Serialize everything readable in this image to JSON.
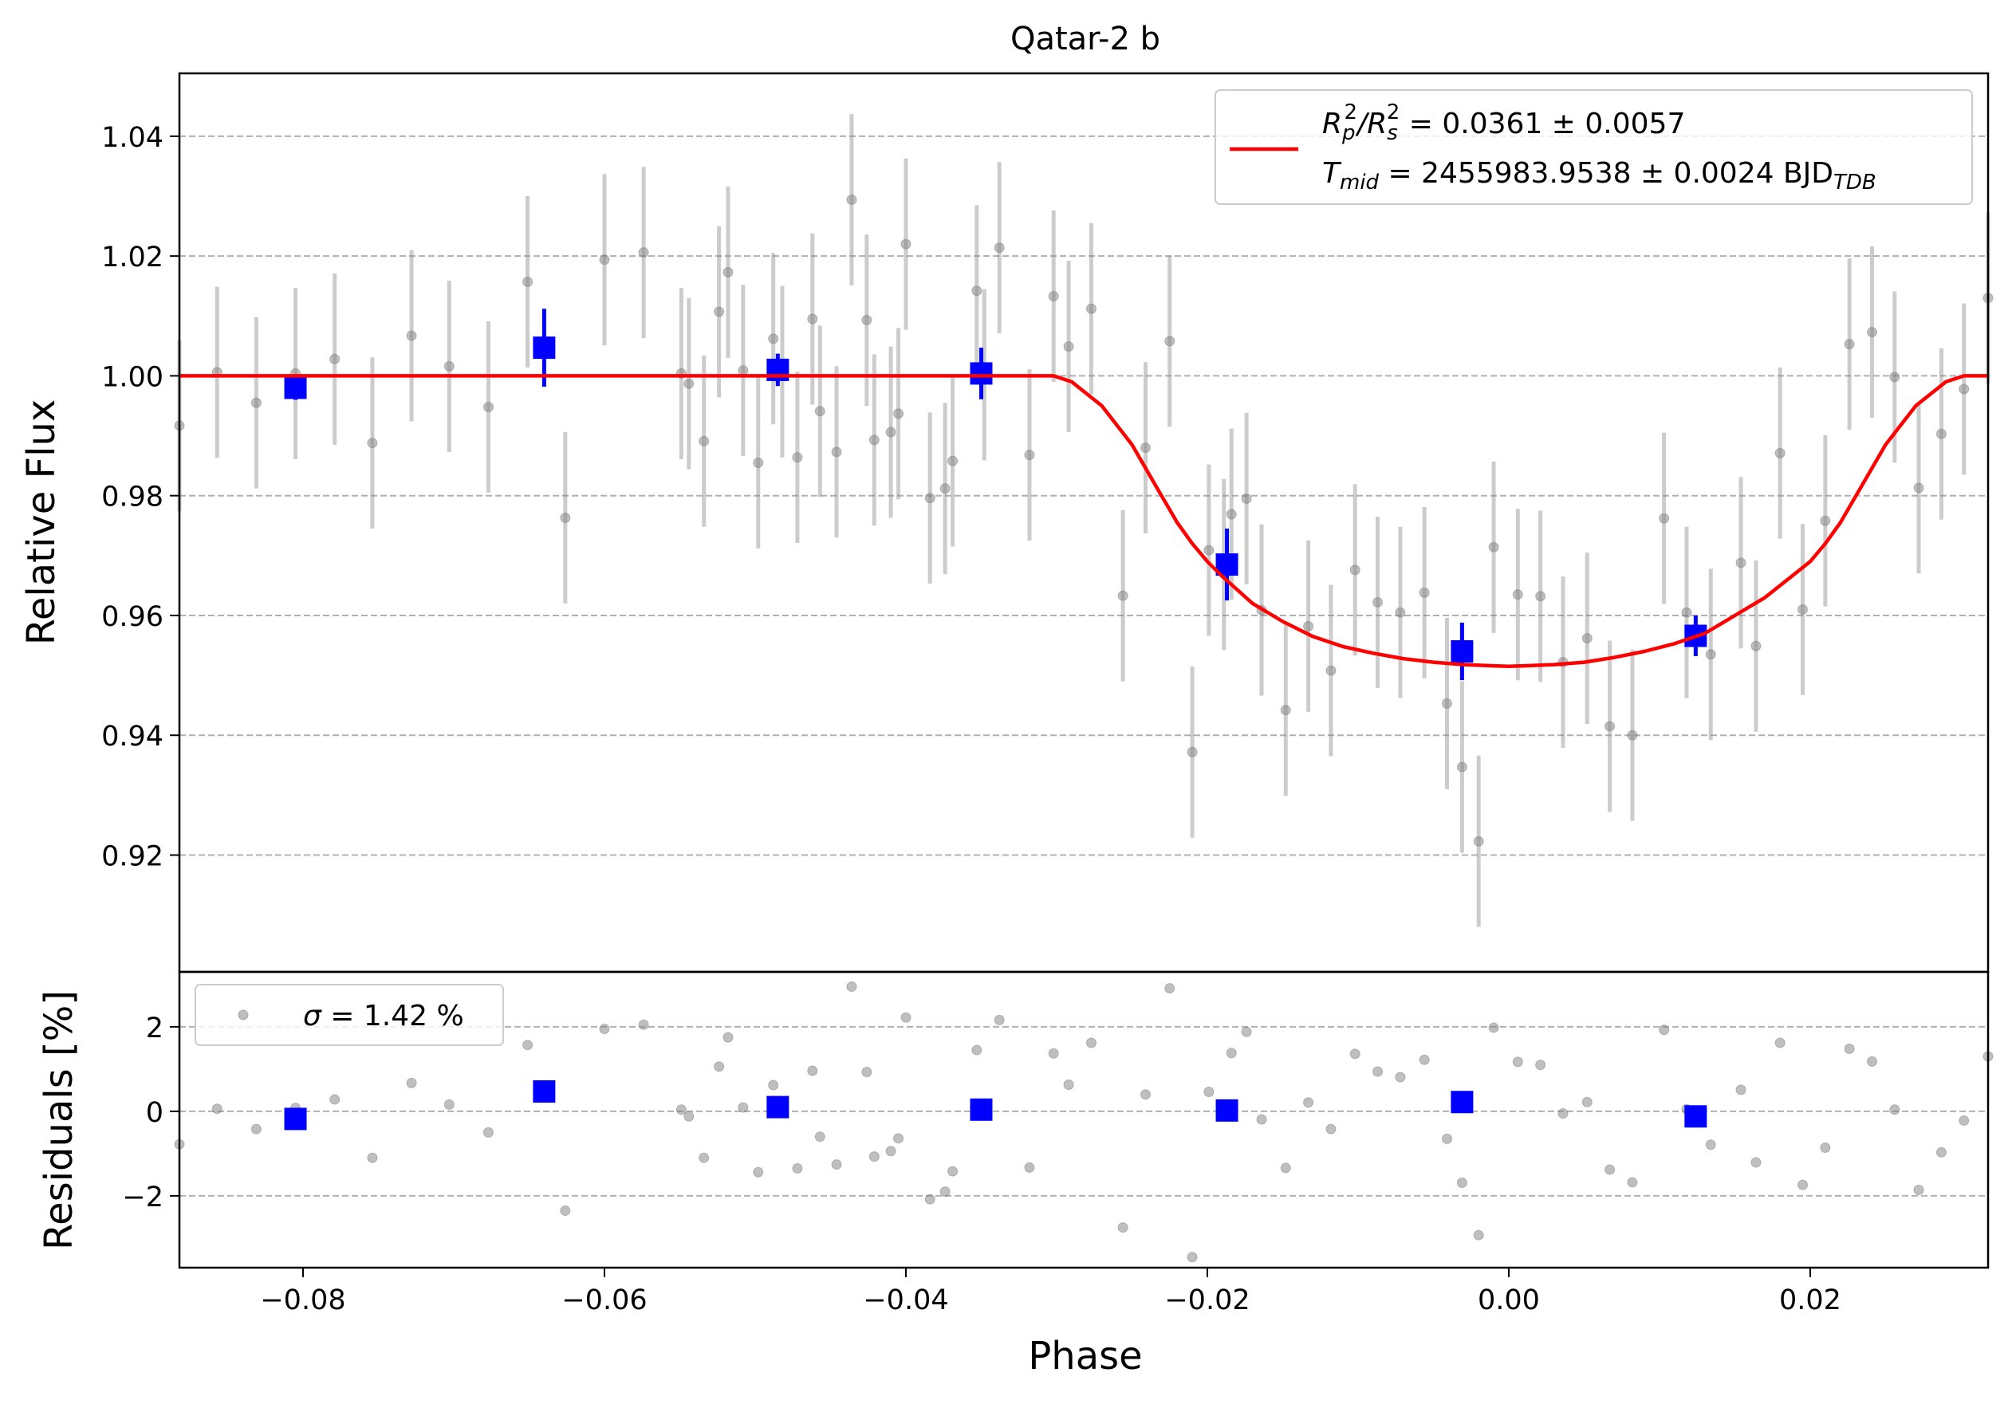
{
  "chart_data": [
    {
      "type": "scatter",
      "panel": "main",
      "title": "Qatar-2 b",
      "xlabel": "",
      "ylabel": "Relative Flux",
      "xlim": [
        -0.0882,
        0.0318
      ],
      "ylim": [
        0.9005,
        1.0505
      ],
      "grid": "horizontal dashed",
      "yticks": [
        0.92,
        0.94,
        0.96,
        0.98,
        1.0,
        1.02,
        1.04
      ],
      "ytick_labels": [
        "0.92",
        "0.94",
        "0.96",
        "0.98",
        "1.00",
        "1.02",
        "1.04"
      ],
      "legend": {
        "placement": "top-right",
        "line1": [
          "R",
          "p",
          "2",
          "/R",
          "s",
          "2",
          " = 0.0361 ± 0.0057"
        ],
        "line2": [
          "T",
          "mid",
          " = 2455983.9538 ± 0.0024 BJD",
          "TDB"
        ]
      },
      "series": [
        {
          "kind": "raw",
          "color": "#808080",
          "x": [
            -0.0882,
            -0.0857,
            -0.0831,
            -0.0805,
            -0.0779,
            -0.0754,
            -0.0728,
            -0.0703,
            -0.0677,
            -0.0651,
            -0.0626,
            -0.06,
            -0.0574,
            -0.0549,
            -0.0544,
            -0.0534,
            -0.0524,
            -0.0518,
            -0.0508,
            -0.0498,
            -0.0488,
            -0.0482,
            -0.0472,
            -0.0462,
            -0.0457,
            -0.0446,
            -0.0436,
            -0.0426,
            -0.0421,
            -0.041,
            -0.0405,
            -0.04,
            -0.0384,
            -0.0374,
            -0.0369,
            -0.0353,
            -0.0348,
            -0.0338,
            -0.0318,
            -0.0302,
            -0.0292,
            -0.0277,
            -0.0256,
            -0.0241,
            -0.0225,
            -0.021,
            -0.0199,
            -0.0189,
            -0.0184,
            -0.0174,
            -0.0164,
            -0.0148,
            -0.0133,
            -0.0118,
            -0.0102,
            -0.0087,
            -0.0072,
            -0.0056,
            -0.0041,
            -0.0031,
            -0.002,
            -0.001,
            0.0006,
            0.0021,
            0.0036,
            0.0052,
            0.0067,
            0.0082,
            0.0103,
            0.0118,
            0.0134,
            0.0154,
            0.0164,
            0.018,
            0.0195,
            0.021,
            0.0226,
            0.0241,
            0.0256,
            0.0272,
            0.0287,
            0.0302,
            0.0318
          ],
          "y": [
            0.9917,
            1.0006,
            0.9955,
            1.0004,
            1.0028,
            0.9888,
            1.0067,
            1.0016,
            0.9948,
            1.0157,
            0.9763,
            1.0194,
            1.0206,
            1.0004,
            0.9987,
            0.9891,
            1.0107,
            1.0173,
            1.0009,
            0.9855,
            1.0062,
            1.0007,
            0.9864,
            1.0095,
            0.9941,
            0.9873,
            1.0294,
            1.0093,
            0.9893,
            0.9906,
            0.9937,
            1.022,
            0.9796,
            0.9812,
            0.9858,
            1.0142,
            1.0002,
            1.0214,
            0.9868,
            1.0133,
            1.0049,
            1.0112,
            0.9633,
            0.988,
            1.0058,
            0.9372,
            0.9709,
            0.9685,
            0.9769,
            0.9795,
            0.9609,
            0.9442,
            0.9582,
            0.9508,
            0.9676,
            0.9622,
            0.9605,
            0.9638,
            0.9453,
            0.9347,
            0.9223,
            0.9714,
            0.9635,
            0.9632,
            0.9522,
            0.9562,
            0.9415,
            0.94,
            0.9762,
            0.9605,
            0.9535,
            0.9688,
            0.9549,
            0.9871,
            0.961,
            0.9758,
            1.0053,
            1.0073,
            0.9998,
            0.9813,
            0.9903,
            0.9978,
            1.013
          ],
          "error": 0.0143
        },
        {
          "kind": "binned",
          "color": "#0000ff",
          "x": [
            -0.0805,
            -0.064,
            -0.0485,
            -0.035,
            -0.0187,
            -0.0031,
            0.0124
          ],
          "y": [
            0.998,
            1.0047,
            1.001,
            1.0004,
            0.9685,
            0.954,
            0.9566
          ],
          "error": [
            0.002,
            0.0065,
            0.0027,
            0.0043,
            0.006,
            0.0048,
            0.0034
          ]
        },
        {
          "kind": "model",
          "color": "#ff0000",
          "x": [
            -0.0882,
            -0.0302,
            -0.029,
            -0.027,
            -0.025,
            -0.0235,
            -0.022,
            -0.021,
            -0.02,
            -0.019,
            -0.017,
            -0.015,
            -0.013,
            -0.011,
            -0.009,
            -0.007,
            -0.005,
            -0.003,
            -0.001,
            0.0,
            0.001,
            0.003,
            0.005,
            0.007,
            0.009,
            0.011,
            0.013,
            0.015,
            0.017,
            0.019,
            0.02,
            0.021,
            0.022,
            0.0235,
            0.025,
            0.027,
            0.029,
            0.0302,
            0.0318
          ],
          "y": [
            1.0,
            1.0,
            0.999,
            0.995,
            0.9885,
            0.982,
            0.9755,
            0.972,
            0.969,
            0.9665,
            0.962,
            0.959,
            0.9565,
            0.9548,
            0.9537,
            0.9528,
            0.9522,
            0.9518,
            0.9516,
            0.9515,
            0.9516,
            0.9518,
            0.9522,
            0.953,
            0.954,
            0.9553,
            0.957,
            0.96,
            0.963,
            0.967,
            0.969,
            0.972,
            0.9755,
            0.982,
            0.9885,
            0.995,
            0.999,
            1.0,
            1.0
          ]
        }
      ]
    },
    {
      "type": "scatter",
      "panel": "residuals",
      "xlabel": "Phase",
      "ylabel": "Residuals [%]",
      "xlim": [
        -0.0882,
        0.0318
      ],
      "ylim": [
        -3.7,
        3.3
      ],
      "grid": "horizontal dashed",
      "yticks": [
        -2,
        0,
        2
      ],
      "ytick_labels": [
        "−2",
        "0",
        "2"
      ],
      "xticks": [
        -0.08,
        -0.06,
        -0.04,
        -0.02,
        0.0,
        0.02
      ],
      "xtick_labels": [
        "−0.08",
        "−0.06",
        "−0.04",
        "−0.02",
        "0.00",
        "0.02"
      ],
      "legend": {
        "placement": "top-left",
        "label": [
          "σ",
          " = 1.42 %"
        ]
      },
      "series": [
        {
          "kind": "raw",
          "color": "#808080",
          "x": [
            -0.0882,
            -0.0857,
            -0.0831,
            -0.0805,
            -0.0779,
            -0.0754,
            -0.0728,
            -0.0703,
            -0.0677,
            -0.0651,
            -0.0626,
            -0.06,
            -0.0574,
            -0.0549,
            -0.0544,
            -0.0534,
            -0.0524,
            -0.0518,
            -0.0508,
            -0.0498,
            -0.0488,
            -0.0482,
            -0.0472,
            -0.0462,
            -0.0457,
            -0.0446,
            -0.0436,
            -0.0426,
            -0.0421,
            -0.041,
            -0.0405,
            -0.04,
            -0.0384,
            -0.0374,
            -0.0369,
            -0.0353,
            -0.0348,
            -0.0338,
            -0.0318,
            -0.0302,
            -0.0292,
            -0.0277,
            -0.0256,
            -0.0241,
            -0.0225,
            -0.021,
            -0.0199,
            -0.0189,
            -0.0184,
            -0.0174,
            -0.0164,
            -0.0148,
            -0.0133,
            -0.0118,
            -0.0102,
            -0.0087,
            -0.0072,
            -0.0056,
            -0.0041,
            -0.0031,
            -0.002,
            -0.001,
            0.0006,
            0.0021,
            0.0036,
            0.0052,
            0.0067,
            0.0082,
            0.0103,
            0.0118,
            0.0134,
            0.0154,
            0.0164,
            0.018,
            0.0195,
            0.021,
            0.0226,
            0.0241,
            0.0256,
            0.0272,
            0.0287,
            0.0302,
            0.0318
          ],
          "y": [
            -0.78,
            0.06,
            -0.42,
            0.08,
            0.28,
            -1.1,
            0.67,
            0.16,
            -0.5,
            1.57,
            -2.35,
            1.95,
            2.05,
            0.04,
            -0.12,
            -1.1,
            1.06,
            1.75,
            0.09,
            -1.44,
            0.62,
            0.08,
            -1.35,
            0.96,
            -0.6,
            -1.26,
            2.95,
            0.93,
            -1.07,
            -0.94,
            -0.64,
            2.22,
            -2.08,
            -1.9,
            -1.42,
            1.45,
            0.02,
            2.16,
            -1.33,
            1.37,
            0.63,
            1.62,
            -2.75,
            0.4,
            2.91,
            -3.45,
            0.46,
            0.0,
            1.38,
            1.88,
            -0.19,
            -1.34,
            0.21,
            -0.42,
            1.36,
            0.94,
            0.81,
            1.22,
            -0.65,
            -1.69,
            -2.93,
            1.98,
            1.17,
            1.1,
            -0.05,
            0.22,
            -1.38,
            -1.68,
            1.93,
            0.05,
            -0.79,
            0.51,
            -1.21,
            1.62,
            -1.74,
            -0.86,
            1.48,
            1.18,
            0.04,
            -1.86,
            -0.97,
            -0.22,
            1.3
          ]
        },
        {
          "kind": "binned",
          "color": "#0000ff",
          "x": [
            -0.0805,
            -0.064,
            -0.0485,
            -0.035,
            -0.0187,
            -0.0031,
            0.0124
          ],
          "y": [
            -0.18,
            0.47,
            0.1,
            0.04,
            0.02,
            0.22,
            -0.12
          ]
        }
      ]
    }
  ]
}
